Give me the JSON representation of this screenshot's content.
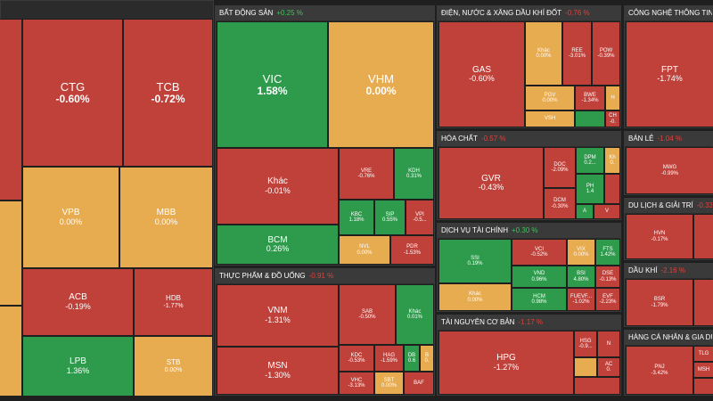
{
  "colors": {
    "red": "#c0413a",
    "green": "#2e9b4c",
    "yellow": "#e7ab50",
    "header_bg": "#3a3a3a",
    "up": "#3ec35c",
    "down": "#e0413a"
  },
  "sectors": {
    "bank": {
      "tiles": {
        "ctg": {
          "sym": "CTG",
          "pct": "-0.60%"
        },
        "tcb": {
          "sym": "TCB",
          "pct": "-0.72%"
        },
        "vpb": {
          "sym": "VPB",
          "pct": "0.00%"
        },
        "mbb": {
          "sym": "MBB",
          "pct": "0.00%"
        },
        "acb": {
          "sym": "ACB",
          "pct": "-0.19%"
        },
        "hdb": {
          "sym": "HDB",
          "pct": "-1.77%"
        },
        "lpb": {
          "sym": "LPB",
          "pct": "1.36%"
        },
        "stb": {
          "sym": "STB",
          "pct": "0.00%"
        }
      }
    },
    "realestate": {
      "title": "BẤT ĐỘNG SẢN",
      "change": "+0.25 %",
      "tiles": {
        "vic": {
          "sym": "VIC",
          "pct": "1.58%"
        },
        "vhm": {
          "sym": "VHM",
          "pct": "0.00%"
        },
        "khac": {
          "sym": "Khác",
          "pct": "-0.01%"
        },
        "vre": {
          "sym": "VRE",
          "pct": "-0.76%"
        },
        "kdh": {
          "sym": "KDH",
          "pct": "0.31%"
        },
        "kbc": {
          "sym": "KBC",
          "pct": "1.18%"
        },
        "sip": {
          "sym": "SIP",
          "pct": "0.55%"
        },
        "vpi": {
          "sym": "VPI",
          "pct": "-0.5..."
        },
        "bcm": {
          "sym": "BCM",
          "pct": "0.26%"
        },
        "nvl": {
          "sym": "NVL",
          "pct": "0.00%"
        },
        "pdr": {
          "sym": "PDR",
          "pct": "-1.53%"
        }
      }
    },
    "food": {
      "title": "THỰC PHẨM & ĐỒ UỐNG",
      "change": "-0.91 %",
      "tiles": {
        "vnm": {
          "sym": "VNM",
          "pct": "-1.31%"
        },
        "msn": {
          "sym": "MSN",
          "pct": "-1.30%"
        },
        "sab": {
          "sym": "SAB",
          "pct": "-0.50%"
        },
        "khac": {
          "sym": "Khác",
          "pct": "0.01%"
        },
        "kdc": {
          "sym": "KDC",
          "pct": "-0.53%"
        },
        "hag": {
          "sym": "HAG",
          "pct": "-1.59%"
        },
        "db": {
          "sym": "DB",
          "pct": "0.6"
        },
        "b": {
          "sym": "B",
          "pct": "0."
        },
        "vhc": {
          "sym": "VHC",
          "pct": "-3.13%"
        },
        "sbt": {
          "sym": "SBT",
          "pct": "0.00%"
        },
        "baf": {
          "sym": "BAF",
          "pct": ""
        }
      }
    },
    "utilities": {
      "title": "ĐIỆN, NƯỚC & XĂNG DẦU KHÍ ĐỐT",
      "change": "-0.76 %",
      "tiles": {
        "gas": {
          "sym": "GAS",
          "pct": "-0.60%"
        },
        "khac": {
          "sym": "Khác",
          "pct": "0.00%"
        },
        "ree": {
          "sym": "REE",
          "pct": "-3.01%"
        },
        "pow": {
          "sym": "POW",
          "pct": "-0.39%"
        },
        "pgv": {
          "sym": "PGV",
          "pct": "0.00%"
        },
        "bwe": {
          "sym": "BWE",
          "pct": "-1.34%"
        },
        "h": {
          "sym": "H",
          "pct": ""
        },
        "vsh": {
          "sym": "VSH",
          "pct": ""
        },
        "ch": {
          "sym": "CH",
          "pct": "-0."
        }
      }
    },
    "chemicals": {
      "title": "HÓA CHẤT",
      "change": "-0.57 %",
      "tiles": {
        "gvr": {
          "sym": "GVR",
          "pct": "-0.43%"
        },
        "doc": {
          "sym": "DOC",
          "pct": "-2.09%"
        },
        "dcm": {
          "sym": "DCM",
          "pct": "-0.30%"
        },
        "dpm": {
          "sym": "DPM",
          "pct": "0.2..."
        },
        "kh": {
          "sym": "Kh",
          "pct": "0."
        },
        "ph": {
          "sym": "PH",
          "pct": "1.4"
        },
        "a": {
          "sym": "A",
          "pct": ""
        },
        "v": {
          "sym": "V",
          "pct": ""
        }
      }
    },
    "finance": {
      "title": "DỊCH VỤ TÀI CHÍNH",
      "change": "+0.30 %",
      "tiles": {
        "ssi": {
          "sym": "SSI",
          "pct": "0.19%"
        },
        "khac": {
          "sym": "Khác",
          "pct": "0.00%"
        },
        "vci": {
          "sym": "VCI",
          "pct": "-0.52%"
        },
        "vix": {
          "sym": "VIX",
          "pct": "0.00%"
        },
        "fts": {
          "sym": "FTS",
          "pct": "1.42%"
        },
        "vnd": {
          "sym": "VND",
          "pct": "0.96%"
        },
        "bsi": {
          "sym": "BSI",
          "pct": "4.80%"
        },
        "dse": {
          "sym": "DSE",
          "pct": "-0.13%"
        },
        "hcm": {
          "sym": "HCM",
          "pct": "0.98%"
        },
        "fuev": {
          "sym": "FUEVF...",
          "pct": "-1.02%"
        },
        "evf": {
          "sym": "EVF",
          "pct": "-2.23%"
        }
      }
    },
    "resources": {
      "title": "TÀI NGUYÊN CƠ BẢN",
      "change": "-1.17 %",
      "tiles": {
        "hpg": {
          "sym": "HPG",
          "pct": "-1.27%"
        },
        "hsg": {
          "sym": "HSG",
          "pct": "-0.9..."
        },
        "n": {
          "sym": "N",
          "pct": ""
        },
        "ac": {
          "sym": "AC",
          "pct": "0."
        }
      }
    },
    "tech": {
      "title": "CÔNG NGHỆ THÔNG TIN",
      "change": "",
      "tiles": {
        "fpt": {
          "sym": "FPT",
          "pct": "-1.74%"
        }
      }
    },
    "retail": {
      "title": "BÁN LẺ",
      "change": "-1.04 %",
      "tiles": {
        "mwg": {
          "sym": "MWG",
          "pct": "-0.99%"
        }
      }
    },
    "travel": {
      "title": "DU LỊCH & GIẢI TRÍ",
      "change": "-0.33 %",
      "tiles": {
        "hvn": {
          "sym": "HVN",
          "pct": "-0.17%"
        }
      }
    },
    "oil": {
      "title": "DẦU KHÍ",
      "change": "-2.16 %",
      "tiles": {
        "bsr": {
          "sym": "BSR",
          "pct": "-1.79%"
        }
      }
    },
    "personal": {
      "title": "HÀNG CÁ NHÂN & GIA DỤNG",
      "change": "",
      "tiles": {
        "pnj": {
          "sym": "PNJ",
          "pct": "-3.42%"
        },
        "tlg": {
          "sym": "TLG",
          "pct": ""
        },
        "msh": {
          "sym": "MSH",
          "pct": ""
        }
      }
    }
  }
}
